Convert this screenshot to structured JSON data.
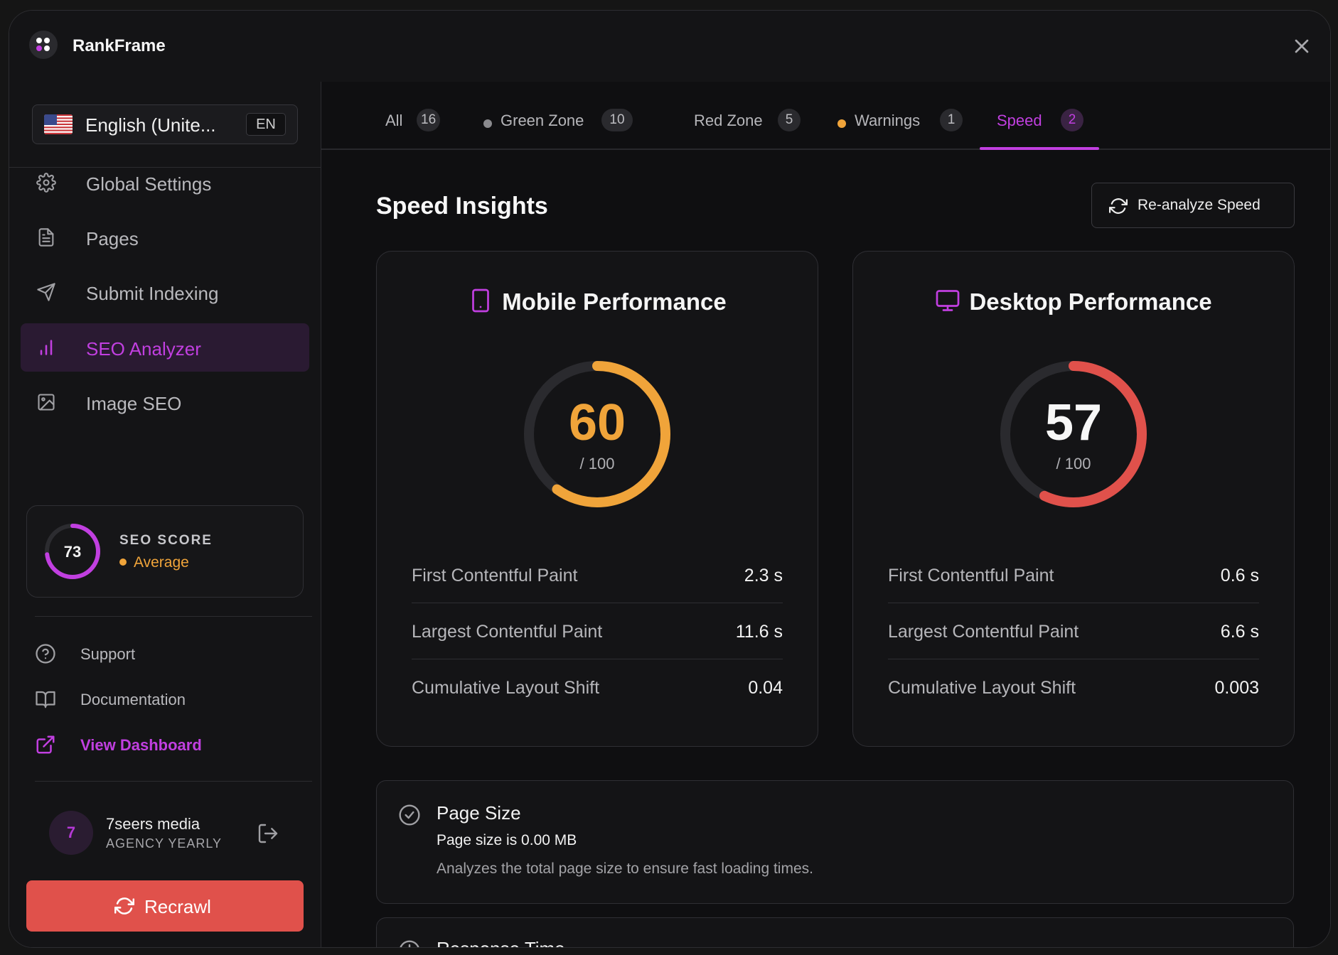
{
  "app": {
    "name": "RankFrame"
  },
  "language": {
    "name": "English (Unite...",
    "code": "EN"
  },
  "nav": [
    {
      "label": "Global Settings",
      "icon": "gear-icon",
      "active": false
    },
    {
      "label": "Pages",
      "icon": "document-icon",
      "active": false
    },
    {
      "label": "Submit Indexing",
      "icon": "send-icon",
      "active": false
    },
    {
      "label": "SEO Analyzer",
      "icon": "bar-chart-icon",
      "active": true
    },
    {
      "label": "Image SEO",
      "icon": "image-icon",
      "active": false
    }
  ],
  "seo_score": {
    "value": "73",
    "label": "SEO SCORE",
    "status": "Average",
    "fraction": 0.73
  },
  "links": {
    "support": "Support",
    "documentation": "Documentation",
    "dashboard": "View Dashboard"
  },
  "user": {
    "initial": "7",
    "name": "7seers media",
    "plan": "AGENCY YEARLY"
  },
  "recrawl": {
    "label": "Recrawl"
  },
  "tabs": [
    {
      "label": "All",
      "count": "16"
    },
    {
      "label": "Green Zone",
      "count": "10",
      "dot": "#8a8a8e"
    },
    {
      "label": "Red Zone",
      "count": "5"
    },
    {
      "label": "Warnings",
      "count": "1",
      "dot": "#f0a43a"
    },
    {
      "label": "Speed",
      "count": "2",
      "active": true
    }
  ],
  "speed": {
    "title": "Speed Insights",
    "reanalyze_label": "Re-analyze Speed",
    "mobile": {
      "title": "Mobile Performance",
      "score": "60",
      "score_fraction": 0.6,
      "denominator": "/ 100",
      "color": "#f0a43a",
      "metrics": [
        {
          "name": "First Contentful Paint",
          "value": "2.3 s"
        },
        {
          "name": "Largest Contentful Paint",
          "value": "11.6 s"
        },
        {
          "name": "Cumulative Layout Shift",
          "value": "0.04"
        }
      ]
    },
    "desktop": {
      "title": "Desktop Performance",
      "score": "57",
      "score_fraction": 0.57,
      "denominator": "/ 100",
      "color": "#e0514b",
      "metrics": [
        {
          "name": "First Contentful Paint",
          "value": "0.6 s"
        },
        {
          "name": "Largest Contentful Paint",
          "value": "6.6 s"
        },
        {
          "name": "Cumulative Layout Shift",
          "value": "0.003"
        }
      ]
    },
    "page_size": {
      "title": "Page Size",
      "result": "Page size is 0.00 MB",
      "description": "Analyzes the total page size to ensure fast loading times."
    },
    "next_check": {
      "title": "Response Time"
    }
  },
  "colors": {
    "accent": "#c13fe0",
    "danger": "#e0514b",
    "warning": "#f0a43a"
  }
}
